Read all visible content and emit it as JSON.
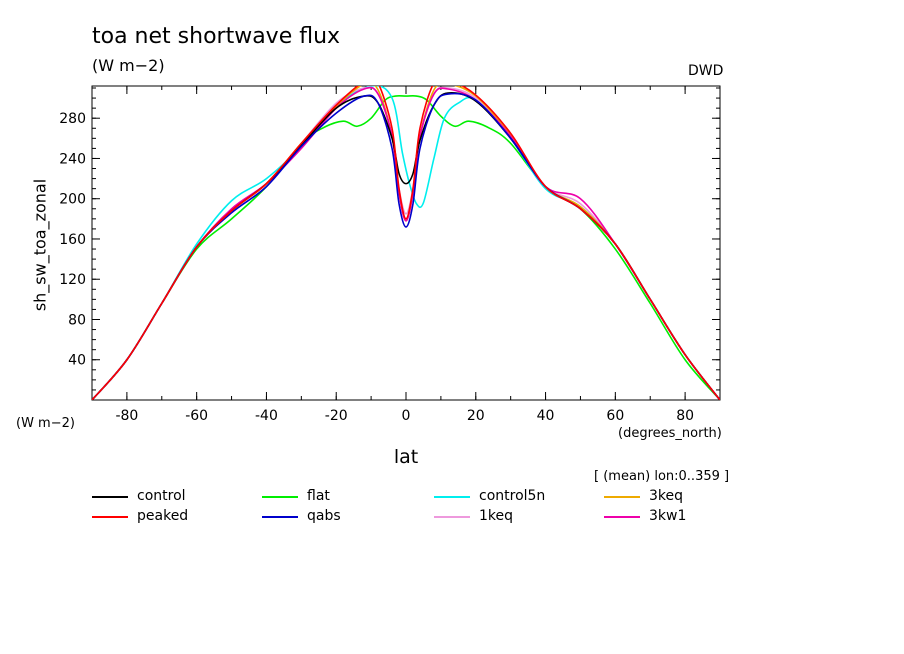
{
  "chart_data": {
    "type": "line",
    "title": "toa net shortwave flux",
    "units": "(W m−2)",
    "source_label": "DWD",
    "ylabel": "sh_sw_toa_zonal",
    "xlabel": "lat",
    "x_units": "(degrees_north)",
    "y_units": "(W m−2)",
    "mean_note": "[ (mean) lon:0..359 ]",
    "xlim": [
      -90,
      90
    ],
    "ylim": [
      0,
      312
    ],
    "x_ticks": [
      -80,
      -60,
      -40,
      -20,
      0,
      20,
      40,
      60,
      80
    ],
    "y_ticks": [
      40,
      80,
      120,
      160,
      200,
      240,
      280
    ],
    "grid": false,
    "legend_placement": "bottom",
    "series": [
      {
        "name": "control",
        "color": "#000000",
        "x": [
          -90,
          -80,
          -70,
          -60,
          -50,
          -40,
          -30,
          -20,
          -12,
          -8,
          -4,
          -2,
          0,
          2,
          4,
          8,
          12,
          20,
          30,
          40,
          50,
          60,
          70,
          80,
          90
        ],
        "y": [
          0,
          40,
          96,
          152,
          188,
          215,
          253,
          290,
          302,
          295,
          260,
          225,
          215,
          225,
          258,
          293,
          305,
          297,
          260,
          212,
          190,
          155,
          100,
          45,
          0
        ]
      },
      {
        "name": "peaked",
        "color": "#ff0000",
        "x": [
          -90,
          -80,
          -70,
          -60,
          -50,
          -40,
          -30,
          -20,
          -11,
          -8,
          -4,
          -2,
          0,
          2,
          4,
          8,
          12,
          20,
          30,
          40,
          50,
          60,
          70,
          80,
          90
        ],
        "y": [
          0,
          40,
          96,
          152,
          188,
          215,
          255,
          293,
          319,
          315,
          270,
          210,
          180,
          210,
          270,
          315,
          318,
          303,
          265,
          212,
          190,
          155,
          100,
          45,
          0
        ]
      },
      {
        "name": "flat",
        "color": "#00ee00",
        "x": [
          -90,
          -80,
          -70,
          -60,
          -50,
          -40,
          -30,
          -24,
          -18,
          -14,
          -10,
          -6,
          -3,
          0,
          3,
          6,
          10,
          14,
          18,
          24,
          30,
          40,
          50,
          60,
          70,
          80,
          90
        ],
        "y": [
          0,
          40,
          96,
          150,
          180,
          212,
          255,
          270,
          277,
          272,
          280,
          298,
          302,
          302,
          302,
          298,
          282,
          272,
          277,
          270,
          255,
          212,
          190,
          150,
          96,
          40,
          0
        ]
      },
      {
        "name": "qabs",
        "color": "#0000cc",
        "x": [
          -90,
          -80,
          -70,
          -60,
          -50,
          -40,
          -30,
          -20,
          -12,
          -8,
          -4,
          -2,
          0,
          2,
          4,
          8,
          12,
          20,
          30,
          40,
          50,
          60,
          70,
          80,
          90
        ],
        "y": [
          0,
          40,
          96,
          152,
          186,
          212,
          252,
          285,
          302,
          295,
          250,
          195,
          172,
          195,
          250,
          293,
          304,
          298,
          260,
          212,
          190,
          155,
          100,
          45,
          0
        ]
      },
      {
        "name": "control5n",
        "color": "#00eeee",
        "x": [
          -90,
          -80,
          -70,
          -60,
          -50,
          -40,
          -30,
          -20,
          -10,
          -4,
          -1,
          1,
          3,
          5,
          8,
          11,
          15,
          20,
          30,
          40,
          50,
          60,
          70,
          80,
          90
        ],
        "y": [
          0,
          40,
          96,
          155,
          198,
          220,
          252,
          292,
          312,
          300,
          245,
          215,
          195,
          196,
          240,
          280,
          295,
          298,
          260,
          210,
          192,
          155,
          100,
          45,
          0
        ]
      },
      {
        "name": "1keq",
        "color": "#ee99dd",
        "x": [
          -90,
          -80,
          -70,
          -60,
          -50,
          -40,
          -30,
          -20,
          -12,
          -8,
          -4,
          -2,
          0,
          2,
          4,
          8,
          12,
          20,
          30,
          40,
          50,
          60,
          70,
          80,
          90
        ],
        "y": [
          0,
          40,
          96,
          152,
          188,
          215,
          255,
          295,
          310,
          304,
          262,
          210,
          185,
          210,
          262,
          304,
          310,
          300,
          262,
          212,
          195,
          155,
          100,
          45,
          0
        ]
      },
      {
        "name": "3keq",
        "color": "#eeaa00",
        "x": [
          -90,
          -80,
          -70,
          -60,
          -50,
          -40,
          -30,
          -20,
          -12,
          -8,
          -4,
          -2,
          0,
          2,
          4,
          8,
          12,
          20,
          30,
          40,
          50,
          60,
          70,
          80,
          90
        ],
        "y": [
          0,
          40,
          96,
          152,
          188,
          215,
          255,
          292,
          314,
          308,
          262,
          206,
          178,
          206,
          262,
          308,
          314,
          302,
          263,
          212,
          192,
          155,
          100,
          45,
          0
        ]
      },
      {
        "name": "3kw1",
        "color": "#ee00aa",
        "x": [
          -90,
          -80,
          -70,
          -60,
          -50,
          -40,
          -30,
          -20,
          -12,
          -8,
          -4,
          -2,
          0,
          2,
          4,
          8,
          12,
          20,
          30,
          40,
          50,
          60,
          70,
          80,
          90
        ],
        "y": [
          0,
          40,
          96,
          152,
          190,
          215,
          250,
          290,
          309,
          304,
          262,
          206,
          178,
          206,
          262,
          304,
          309,
          298,
          262,
          212,
          200,
          155,
          100,
          45,
          0
        ]
      }
    ]
  }
}
